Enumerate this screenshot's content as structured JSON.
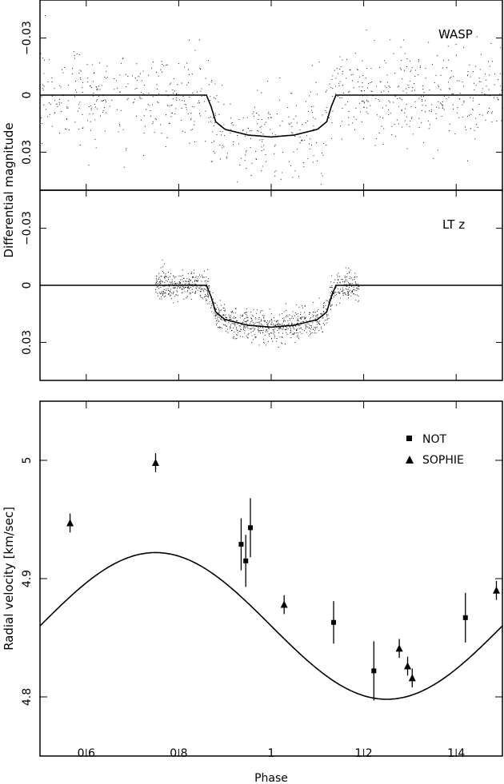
{
  "chart_data": [
    {
      "type": "line",
      "panel": "top",
      "label": "WASP",
      "ylabel": "Differential magnitude",
      "x": [
        0.5,
        0.86,
        0.87,
        0.88,
        0.9,
        0.95,
        1.0,
        1.05,
        1.1,
        1.12,
        1.13,
        1.14,
        1.5
      ],
      "y": [
        0.0,
        0.0,
        0.006,
        0.014,
        0.018,
        0.021,
        0.022,
        0.021,
        0.018,
        0.014,
        0.006,
        0.0,
        0.0
      ],
      "ylim": [
        0.05,
        -0.05
      ],
      "xlim": [
        0.5,
        1.5
      ],
      "yticks": [
        0.03,
        0,
        -0.03
      ],
      "yticklabels": [
        "0.03",
        "0",
        "−0.03"
      ],
      "series": [
        {
          "name": "model",
          "style": "line"
        },
        {
          "name": "photometry",
          "style": "dots",
          "phase_range": [
            0.5,
            1.5
          ]
        }
      ]
    },
    {
      "type": "line",
      "panel": "middle",
      "label": "LT z",
      "x": [
        0.5,
        0.86,
        0.87,
        0.88,
        0.9,
        0.95,
        1.0,
        1.05,
        1.1,
        1.12,
        1.13,
        1.14,
        1.5
      ],
      "y": [
        0.0,
        0.0,
        0.006,
        0.014,
        0.018,
        0.021,
        0.022,
        0.021,
        0.018,
        0.014,
        0.006,
        0.0,
        0.0
      ],
      "ylim": [
        0.05,
        -0.05
      ],
      "xlim": [
        0.5,
        1.5
      ],
      "yticks": [
        0.03,
        0,
        -0.03
      ],
      "yticklabels": [
        "0.03",
        "0",
        "−0.03"
      ],
      "series": [
        {
          "name": "model",
          "style": "line"
        },
        {
          "name": "photometry",
          "style": "dots",
          "phase_range": [
            0.75,
            1.19
          ]
        }
      ]
    },
    {
      "type": "scatter",
      "panel": "bottom",
      "xlabel": "Phase",
      "ylabel": "Radial velocity [km/sec]",
      "xlim": [
        0.5,
        1.5
      ],
      "ylim": [
        4.75,
        5.05
      ],
      "xticks": [
        0.6,
        0.8,
        1.0,
        1.2,
        1.4
      ],
      "xticklabels": [
        "0.6",
        "0.8",
        "1",
        "1.2",
        "1.4"
      ],
      "yticks": [
        4.8,
        4.9,
        5.0
      ],
      "yticklabels": [
        "4.8",
        "4.9",
        "5"
      ],
      "model": {
        "gamma": 4.86,
        "K": 0.062,
        "phase_of_max": 0.75
      },
      "legend": [
        {
          "label": "NOT",
          "marker": "square"
        },
        {
          "label": "SOPHIE",
          "marker": "triangle"
        }
      ],
      "series": [
        {
          "name": "NOT",
          "marker": "square",
          "points": [
            {
              "x": 0.935,
              "y": 4.929,
              "err": 0.022
            },
            {
              "x": 0.945,
              "y": 4.915,
              "err": 0.022
            },
            {
              "x": 0.955,
              "y": 4.943,
              "err": 0.025
            },
            {
              "x": 1.135,
              "y": 4.863,
              "err": 0.018
            },
            {
              "x": 1.222,
              "y": 4.822,
              "err": 0.025
            },
            {
              "x": 1.42,
              "y": 4.867,
              "err": 0.021
            }
          ]
        },
        {
          "name": "SOPHIE",
          "marker": "triangle",
          "points": [
            {
              "x": 0.565,
              "y": 4.947,
              "err": 0.008
            },
            {
              "x": 0.75,
              "y": 4.998,
              "err": 0.008
            },
            {
              "x": 1.028,
              "y": 4.878,
              "err": 0.008
            },
            {
              "x": 1.277,
              "y": 4.841,
              "err": 0.008
            },
            {
              "x": 1.295,
              "y": 4.826,
              "err": 0.008
            },
            {
              "x": 1.305,
              "y": 4.816,
              "err": 0.008
            },
            {
              "x": 1.487,
              "y": 4.89,
              "err": 0.008
            }
          ]
        }
      ]
    }
  ]
}
